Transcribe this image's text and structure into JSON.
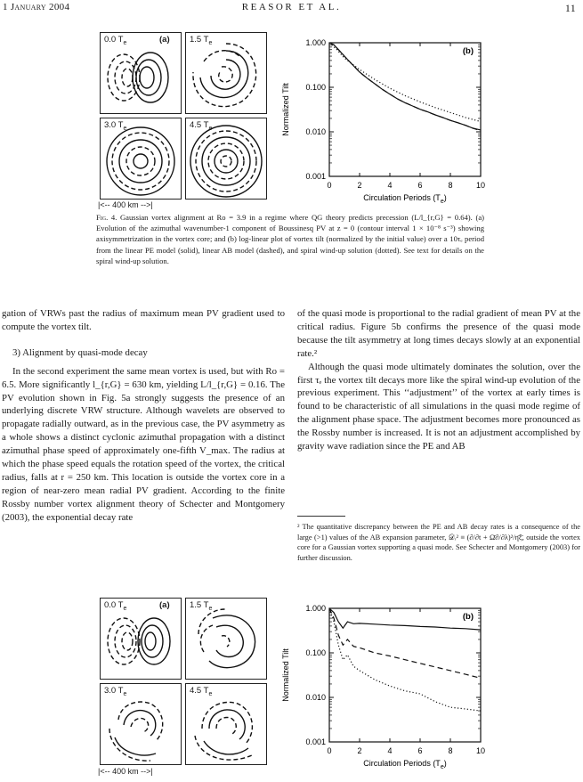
{
  "header": {
    "date": "1 January 2004",
    "running_title": "REASOR ET AL.",
    "page_number": "11"
  },
  "figure_top": {
    "panels": [
      {
        "time": "0.0 T",
        "label": "(a)"
      },
      {
        "time": "1.5 T",
        "label": ""
      },
      {
        "time": "3.0 T",
        "label": ""
      },
      {
        "time": "4.5 T",
        "label": ""
      }
    ],
    "time_subscript": "e",
    "scale_bar": "|<-- 400 km -->|",
    "chart_data": {
      "type": "line",
      "label": "(b)",
      "xlabel": "Circulation Periods (T",
      "xlabel_sub": "e",
      "xlabel_end": ")",
      "ylabel": "Normalized Tilt",
      "xlim": [
        0,
        10
      ],
      "ylim": [
        0.001,
        1.0
      ],
      "y_scale": "log",
      "x_ticks": [
        "0",
        "2",
        "4",
        "6",
        "8",
        "10"
      ],
      "y_ticks": [
        "0.001",
        "0.010",
        "0.100",
        "1.000"
      ],
      "series": [
        {
          "style": "solid",
          "x": [
            0,
            0.3,
            0.6,
            1,
            1.5,
            2,
            2.5,
            3,
            3.5,
            4,
            4.5,
            5,
            5.5,
            6,
            6.5,
            7,
            7.5,
            8,
            8.5,
            9,
            9.5,
            10
          ],
          "y": [
            1.0,
            0.9,
            0.7,
            0.5,
            0.33,
            0.22,
            0.16,
            0.12,
            0.09,
            0.07,
            0.055,
            0.045,
            0.038,
            0.032,
            0.028,
            0.024,
            0.021,
            0.018,
            0.016,
            0.014,
            0.012,
            0.011
          ]
        },
        {
          "style": "dashed",
          "x": [
            0,
            0.3,
            0.6,
            1,
            1.5,
            2,
            2.5,
            3,
            3.5,
            4,
            4.5,
            5,
            5.5,
            6,
            6.5,
            7,
            7.5,
            8,
            8.5,
            9,
            9.5,
            10
          ],
          "y": [
            1.0,
            0.9,
            0.7,
            0.5,
            0.33,
            0.22,
            0.16,
            0.12,
            0.09,
            0.07,
            0.055,
            0.045,
            0.038,
            0.032,
            0.028,
            0.024,
            0.021,
            0.018,
            0.016,
            0.014,
            0.012,
            0.0105
          ]
        },
        {
          "style": "dotted",
          "x": [
            0,
            0.5,
            1,
            2,
            3,
            4,
            5,
            6,
            7,
            8,
            9,
            10
          ],
          "y": [
            1.0,
            0.7,
            0.45,
            0.25,
            0.15,
            0.095,
            0.065,
            0.047,
            0.035,
            0.027,
            0.021,
            0.017
          ]
        }
      ]
    }
  },
  "caption": {
    "fig": "Fig. 4.",
    "text": " Gaussian vortex alignment at Ro = 3.9 in a regime where QG theory predicts precession (L/l_{r,G} = 0.64). (a) Evolution of the azimuthal wavenumber-1 component of Boussinesq PV at z = 0 (contour interval 1 × 10⁻⁸ s⁻³) showing axisymmetrization in the vortex core; and (b) log-linear plot of vortex tilt (normalized by the initial value) over a 10τₑ period from the linear PE model (solid), linear AB model (dashed), and spiral wind-up solution (dotted). See text for details on the spiral wind-up solution."
  },
  "left_column": {
    "p1": "gation of VRWs past the radius of maximum mean PV gradient used to compute the vortex tilt.",
    "heading": "3) Alignment by quasi-mode decay",
    "p2": "In the second experiment the same mean vortex is used, but with Ro = 6.5. More significantly l_{r,G} = 630 km, yielding L/l_{r,G} = 0.16. The PV evolution shown in Fig. 5a strongly suggests the presence of an underlying discrete VRW structure. Although wavelets are observed to propagate radially outward, as in the previous case, the PV asymmetry as a whole shows a distinct cyclonic azimuthal propagation with a distinct azimuthal phase speed of approximately one-fifth V_max. The radius at which the phase speed equals the rotation speed of the vortex, the critical radius, falls at r = 250 km. This location is outside the vortex core in a region of near-zero mean radial PV gradient. According to the finite Rossby number vortex alignment theory of Schecter and Montgomery (2003), the exponential decay rate"
  },
  "right_column": {
    "p1": "of the quasi mode is proportional to the radial gradient of mean PV at the critical radius. Figure 5b confirms the presence of the quasi mode because the tilt asymmetry at long times decays slowly at an exponential rate.²",
    "p2": "Although the quasi mode ultimately dominates the solution, over the first τₑ the vortex tilt decays more like the spiral wind-up evolution of the previous experiment. This ‘‘adjustment’’ of the vortex at early times is found to be characteristic of all simulations in the quasi mode regime of the alignment phase space. The adjustment becomes more pronounced as the Rossby number is increased. It is not an adjustment accomplished by gravity wave radiation since the PE and AB",
    "footnote": "² The quantitative discrepancy between the PE and AB decay rates is a consequence of the large (>1) values of the AB expansion parameter, 𝒟ᵣ² ≡ (∂/∂t + Ω̄∂/∂λ)²/η̄ξ̄, outside the vortex core for a Gaussian vortex supporting a quasi mode. See Schecter and Montgomery (2003) for further discussion."
  },
  "figure_bottom": {
    "panels": [
      {
        "time": "0.0 T",
        "label": "(a)"
      },
      {
        "time": "1.5 T",
        "label": ""
      },
      {
        "time": "3.0 T",
        "label": ""
      },
      {
        "time": "4.5 T",
        "label": ""
      }
    ],
    "time_subscript": "e",
    "scale_bar": "|<-- 400 km -->|",
    "chart_data": {
      "type": "line",
      "label": "(b)",
      "xlabel": "Circulation Periods (T",
      "xlabel_sub": "e",
      "xlabel_end": ")",
      "ylabel": "Normalized Tilt",
      "xlim": [
        0,
        10
      ],
      "ylim": [
        0.001,
        1.0
      ],
      "y_scale": "log",
      "x_ticks": [
        "0",
        "2",
        "4",
        "6",
        "8",
        "10"
      ],
      "y_ticks": [
        "0.001",
        "0.010",
        "0.100",
        "1.000"
      ],
      "series": [
        {
          "style": "solid",
          "x": [
            0,
            0.3,
            0.6,
            0.9,
            1.2,
            1.6,
            2,
            3,
            4,
            5,
            6,
            7,
            8,
            9,
            10
          ],
          "y": [
            1.0,
            0.8,
            0.5,
            0.36,
            0.5,
            0.45,
            0.46,
            0.44,
            0.42,
            0.41,
            0.39,
            0.38,
            0.36,
            0.35,
            0.33
          ]
        },
        {
          "style": "dashed",
          "x": [
            0,
            0.3,
            0.6,
            0.9,
            1.2,
            1.6,
            2,
            3,
            4,
            5,
            6,
            7,
            8,
            9,
            10
          ],
          "y": [
            1.0,
            0.6,
            0.25,
            0.15,
            0.2,
            0.14,
            0.13,
            0.1,
            0.085,
            0.07,
            0.058,
            0.048,
            0.04,
            0.033,
            0.027
          ]
        },
        {
          "style": "dotted",
          "x": [
            0,
            0.3,
            0.6,
            0.9,
            1.2,
            1.6,
            2,
            3,
            4,
            5,
            6,
            7,
            8,
            9,
            10
          ],
          "y": [
            1.0,
            0.5,
            0.15,
            0.07,
            0.09,
            0.05,
            0.04,
            0.025,
            0.018,
            0.014,
            0.012,
            0.008,
            0.006,
            0.0055,
            0.005
          ]
        }
      ]
    }
  }
}
